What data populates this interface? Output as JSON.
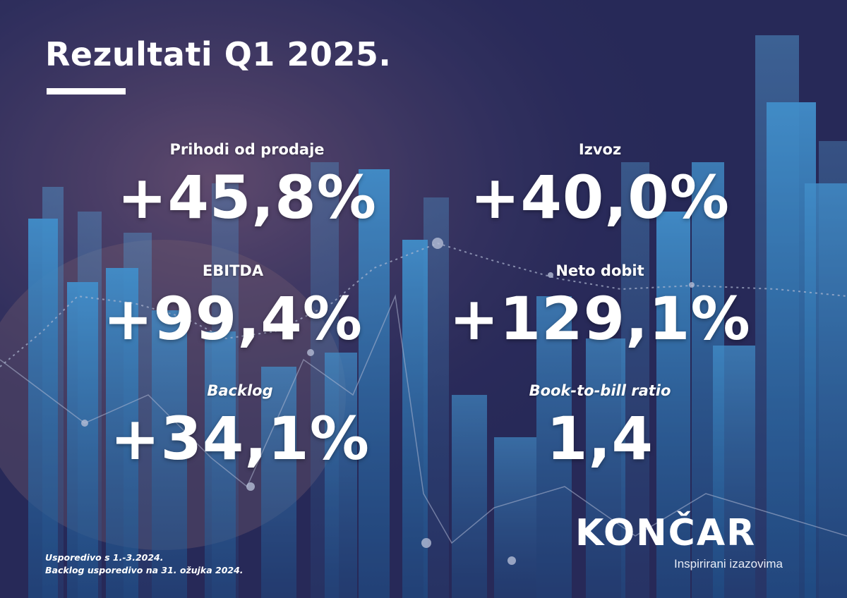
{
  "title": "Rezultati Q1 2025.",
  "kpis": [
    {
      "label": "Prihodi od prodaje",
      "value": "+45,8%"
    },
    {
      "label": "Izvoz",
      "value": "+40,0%"
    },
    {
      "label": "EBITDA",
      "value": "+99,4%"
    },
    {
      "label": "Neto dobit",
      "value": "+129,1%"
    },
    {
      "label": "Backlog",
      "value": "+34,1%"
    },
    {
      "label": "Book-to-bill ratio",
      "value": "1,4"
    }
  ],
  "footnotes": [
    "Usporedivo s 1.-3.2024.",
    "Backlog usporedivo na 31. ožujka 2024."
  ],
  "brand": {
    "name": "KONČAR",
    "tagline": "Inspirirani izazovima"
  },
  "colors": {
    "background": "#2b2a55",
    "bars": "#3a8fd0",
    "text": "#ffffff"
  }
}
